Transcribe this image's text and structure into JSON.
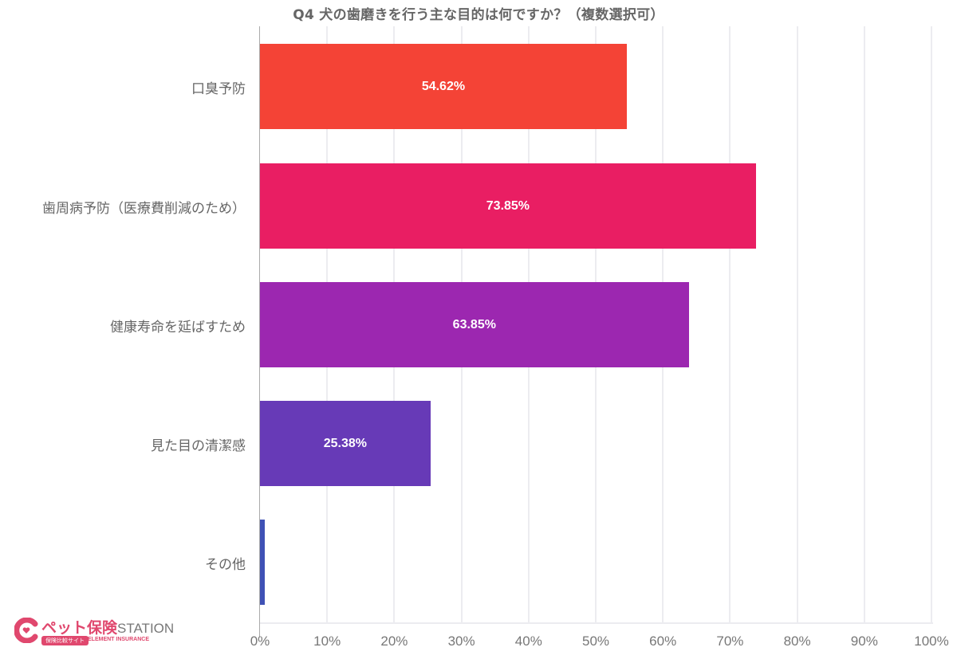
{
  "chart_data": {
    "type": "bar",
    "orientation": "horizontal",
    "title": "Q4 犬の歯磨きを行う主な目的は何ですか？（複数選択可）",
    "xlabel": "",
    "ylabel": "",
    "xlim": [
      0,
      100
    ],
    "grid": true,
    "legend": "none",
    "categories": [
      "口臭予防",
      "歯周病予防（医療費削減のため）",
      "健康寿命を延ばすため",
      "見た目の清潔感",
      "その他"
    ],
    "values": [
      54.62,
      73.85,
      63.85,
      25.38,
      0.77
    ],
    "value_labels": [
      "54.62%",
      "73.85%",
      "63.85%",
      "25.38%",
      ""
    ],
    "colors": [
      "#f44336",
      "#e91e63",
      "#9c27b0",
      "#673ab7",
      "#3f51b5"
    ],
    "x_ticks": [
      "0%",
      "10%",
      "20%",
      "30%",
      "40%",
      "50%",
      "60%",
      "70%",
      "80%",
      "90%",
      "100%"
    ]
  },
  "logo": {
    "main": "ペット保険",
    "station": "STATION",
    "badge": "保険比較サイト",
    "sub": "ELEMENT INSURANCE",
    "color": "#e0486e"
  }
}
